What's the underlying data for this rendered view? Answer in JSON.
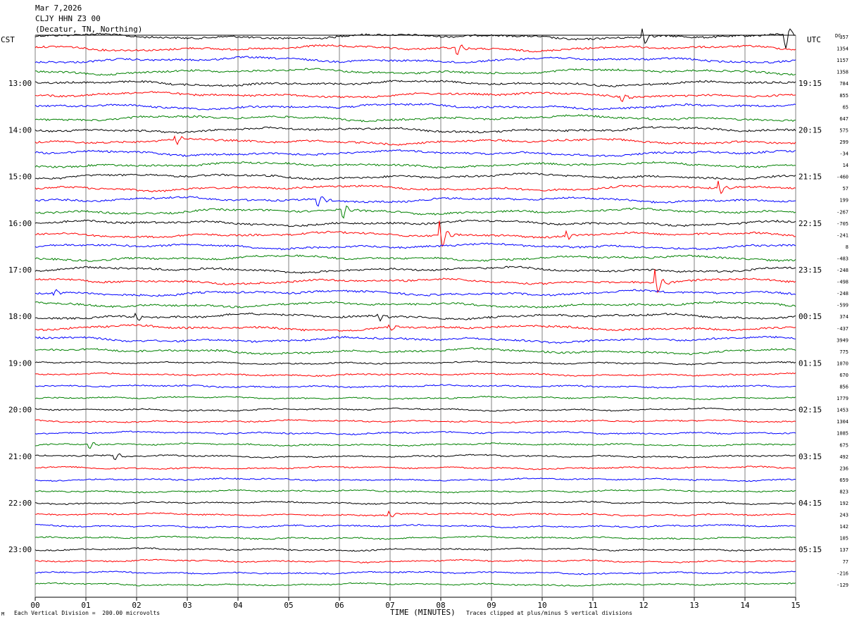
{
  "header": {
    "date": "Mar 7,2026",
    "station": "CLJY HHN Z3 00",
    "location": "(Decatur, TN, Northing)"
  },
  "axis_left_title": "CST",
  "axis_right_title": "UTC",
  "dc_title": "DC",
  "footer": {
    "scale_note": "Each Vertical Division =  200.00 microvolts",
    "xlabel": "TIME (MINUTES)",
    "clip_note": "Traces clipped at plus/minus 5 vertical divisions",
    "corner_mark": "M"
  },
  "colors": {
    "trace_cycle": [
      "#000000",
      "#ff0000",
      "#0000ff",
      "#008000"
    ],
    "grid": "#808080"
  },
  "chart_data": {
    "type": "line",
    "title": "",
    "xlabel": "TIME (MINUTES)",
    "x_ticks": [
      "00",
      "01",
      "02",
      "03",
      "04",
      "05",
      "06",
      "07",
      "08",
      "09",
      "10",
      "11",
      "12",
      "13",
      "14",
      "15"
    ],
    "xlim": [
      0,
      15
    ],
    "n_traces": 48,
    "left_labels": [
      {
        "row": 4,
        "text": "13:00"
      },
      {
        "row": 8,
        "text": "14:00"
      },
      {
        "row": 12,
        "text": "15:00"
      },
      {
        "row": 16,
        "text": "16:00"
      },
      {
        "row": 20,
        "text": "17:00"
      },
      {
        "row": 24,
        "text": "18:00"
      },
      {
        "row": 28,
        "text": "19:00"
      },
      {
        "row": 32,
        "text": "20:00"
      },
      {
        "row": 36,
        "text": "21:00"
      },
      {
        "row": 40,
        "text": "22:00"
      },
      {
        "row": 44,
        "text": "23:00"
      }
    ],
    "right_labels": [
      {
        "row": 4,
        "text": "19:15"
      },
      {
        "row": 8,
        "text": "20:15"
      },
      {
        "row": 12,
        "text": "21:15"
      },
      {
        "row": 16,
        "text": "22:15"
      },
      {
        "row": 20,
        "text": "23:15"
      },
      {
        "row": 24,
        "text": "00:15"
      },
      {
        "row": 28,
        "text": "01:15"
      },
      {
        "row": 32,
        "text": "02:15"
      },
      {
        "row": 36,
        "text": "03:15"
      },
      {
        "row": 40,
        "text": "04:15"
      },
      {
        "row": 44,
        "text": "05:15"
      }
    ],
    "dc_values": [
      "357",
      "1354",
      "1157",
      "1358",
      "784",
      "855",
      "65",
      "647",
      "575",
      "299",
      "-34",
      "14",
      "-460",
      "57",
      "199",
      "-267",
      "-705",
      "-241",
      "8",
      "-483",
      "-248",
      "-498",
      "-248",
      "-599",
      "374",
      "-437",
      "3949",
      "775",
      "1070",
      "670",
      "856",
      "1779",
      "1453",
      "1304",
      "1085",
      "675",
      "492",
      "236",
      "659",
      "823",
      "192",
      "243",
      "142",
      "105",
      "137",
      "77",
      "-216",
      "-129"
    ],
    "events": [
      {
        "trace": 0,
        "minute": 12.0,
        "amp": 2.5
      },
      {
        "trace": 0,
        "minute": 14.8,
        "amp": 4.0
      },
      {
        "trace": 1,
        "minute": 8.35,
        "amp": 1.5
      },
      {
        "trace": 5,
        "minute": 11.6,
        "amp": 1.0
      },
      {
        "trace": 9,
        "minute": 2.8,
        "amp": 1.2
      },
      {
        "trace": 13,
        "minute": 13.5,
        "amp": 2.0
      },
      {
        "trace": 14,
        "minute": 5.6,
        "amp": 1.5
      },
      {
        "trace": 15,
        "minute": 6.1,
        "amp": 2.0
      },
      {
        "trace": 17,
        "minute": 8.0,
        "amp": 4.5
      },
      {
        "trace": 17,
        "minute": 10.5,
        "amp": 1.2
      },
      {
        "trace": 21,
        "minute": 12.25,
        "amp": 4.0
      },
      {
        "trace": 22,
        "minute": 0.4,
        "amp": 1.0
      },
      {
        "trace": 24,
        "minute": 2.0,
        "amp": 1.2
      },
      {
        "trace": 24,
        "minute": 6.8,
        "amp": 1.2
      },
      {
        "trace": 25,
        "minute": 7.0,
        "amp": 1.0
      },
      {
        "trace": 35,
        "minute": 1.1,
        "amp": 1.0
      },
      {
        "trace": 36,
        "minute": 1.6,
        "amp": 1.0
      },
      {
        "trace": 41,
        "minute": 7.0,
        "amp": 1.0
      }
    ]
  }
}
